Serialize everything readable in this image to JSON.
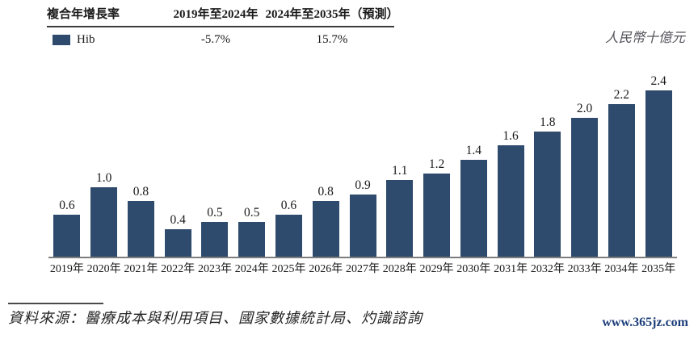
{
  "cagr_table": {
    "row_header": "複合年增長率",
    "col1_header": "2019年至2024年",
    "col2_header": "2024年至2035年（預測）",
    "series_label": "Hib",
    "col1_value": "-5.7%",
    "col2_value": "15.7%"
  },
  "chart_data": {
    "type": "bar",
    "categories": [
      "2019年",
      "2020年",
      "2021年",
      "2022年",
      "2023年",
      "2024年",
      "2025年",
      "2026年",
      "2027年",
      "2028年",
      "2029年",
      "2030年",
      "2031年",
      "2032年",
      "2033年",
      "2034年",
      "2035年"
    ],
    "values": [
      0.6,
      1.0,
      0.8,
      0.4,
      0.5,
      0.5,
      0.6,
      0.8,
      0.9,
      1.1,
      1.2,
      1.4,
      1.6,
      1.8,
      2.0,
      2.2,
      2.4
    ],
    "series_name": "Hib",
    "title": "",
    "xlabel": "",
    "ylabel": "人民幣十億元",
    "ylim": [
      0,
      2.6
    ],
    "grid": false,
    "legend_position": "top-left-table",
    "bar_color": "#2e4a6c"
  },
  "footer": {
    "source": "資料來源：醫療成本與利用項目、國家數據統計局、灼識諮詢",
    "watermark": "www.365jz.com"
  },
  "colors": {
    "bar": "#2e4a6c",
    "axis": "#7d7d7d",
    "watermark": "#1c3e7a"
  }
}
